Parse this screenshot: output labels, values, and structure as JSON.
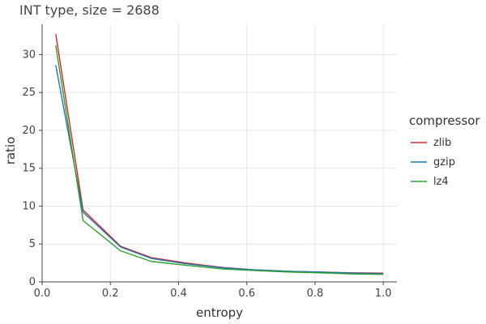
{
  "chart_data": {
    "type": "line",
    "title": "INT type, size = 2688",
    "xlabel": "entropy",
    "ylabel": "ratio",
    "xlim": [
      0.0,
      1.04
    ],
    "ylim": [
      0,
      34
    ],
    "xticks": [
      "0.0",
      "0.2",
      "0.4",
      "0.6",
      "0.8",
      "1.0"
    ],
    "yticks": [
      "0",
      "5",
      "10",
      "15",
      "20",
      "25",
      "30"
    ],
    "grid": true,
    "legend": {
      "title": "compressor",
      "position": "right"
    },
    "x": [
      0.04,
      0.12,
      0.23,
      0.32,
      0.42,
      0.53,
      0.62,
      0.72,
      0.81,
      0.91,
      1.0
    ],
    "series": [
      {
        "name": "zlib",
        "color": "#d62728",
        "values": [
          32.7,
          9.5,
          4.7,
          3.2,
          2.5,
          1.9,
          1.6,
          1.4,
          1.3,
          1.2,
          1.15
        ]
      },
      {
        "name": "gzip",
        "color": "#1f77b4",
        "values": [
          28.6,
          9.2,
          4.6,
          3.1,
          2.4,
          1.85,
          1.6,
          1.4,
          1.3,
          1.15,
          1.1
        ]
      },
      {
        "name": "lz4",
        "color": "#2ca02c",
        "values": [
          31.2,
          8.1,
          4.1,
          2.7,
          2.2,
          1.7,
          1.5,
          1.3,
          1.2,
          1.05,
          1.0
        ]
      }
    ]
  }
}
